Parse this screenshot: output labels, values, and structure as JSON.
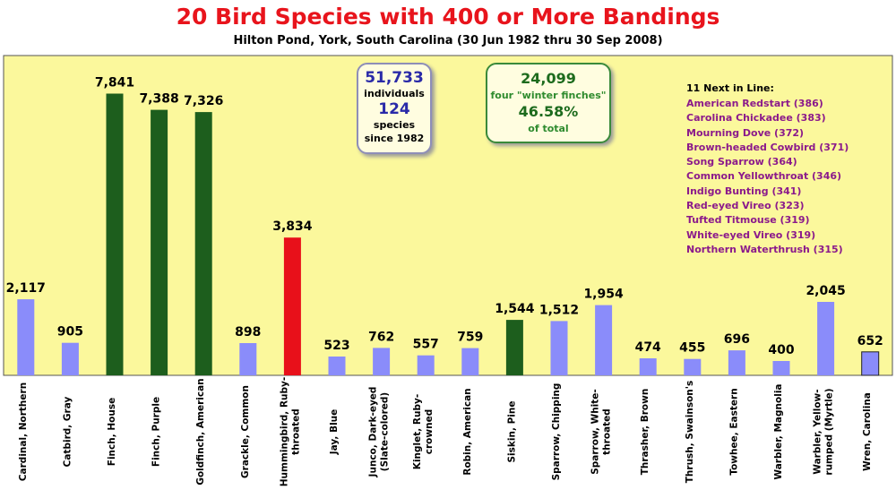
{
  "chart_data": {
    "type": "bar",
    "title": "20 Bird Species with 400 or More Bandings",
    "subtitle": "Hilton Pond, York, South Carolina (30 Jun 1982 thru 30 Sep 2008)",
    "categories": [
      "Cardinal, Northern",
      "Catbird, Gray",
      "Finch, House",
      "Finch, Purple",
      "Goldfinch, American",
      "Grackle, Common",
      "Hummingbird, Ruby-throated",
      "Jay, Blue",
      "Junco, Dark-eyed (Slate-colored)",
      "Kinglet, Ruby-crowned",
      "Robin, American",
      "Siskin, Pine",
      "Sparrow, Chipping",
      "Sparrow, White-throated",
      "Thrasher, Brown",
      "Thrush, Swainson's",
      "Towhee, Eastern",
      "Warbler, Magnolia",
      "Warbler, Yellow-rumped (Myrtle)",
      "Wren, Carolina"
    ],
    "category_lines": [
      [
        "Cardinal, Northern"
      ],
      [
        "Catbird, Gray"
      ],
      [
        "Finch, House"
      ],
      [
        "Finch, Purple"
      ],
      [
        "Goldfinch, American"
      ],
      [
        "Grackle, Common"
      ],
      [
        "Hummingbird, Ruby-",
        "throated"
      ],
      [
        "Jay, Blue"
      ],
      [
        "Junco, Dark-eyed",
        "(Slate-colored)"
      ],
      [
        "Kinglet, Ruby-",
        "crowned"
      ],
      [
        "Robin, American"
      ],
      [
        "Siskin, Pine"
      ],
      [
        "Sparrow, Chipping"
      ],
      [
        "Sparrow, White-",
        "throated"
      ],
      [
        "Thrasher, Brown"
      ],
      [
        "Thrush, Swainson's"
      ],
      [
        "Towhee, Eastern"
      ],
      [
        "Warbler, Magnolia"
      ],
      [
        "Warbler, Yellow-",
        "rumped (Myrtle)"
      ],
      [
        "Wren, Carolina"
      ]
    ],
    "values": [
      2117,
      905,
      7841,
      7388,
      7326,
      898,
      3834,
      523,
      762,
      557,
      759,
      1544,
      1512,
      1954,
      474,
      455,
      696,
      400,
      2045,
      652
    ],
    "value_labels": [
      "2,117",
      "905",
      "7,841",
      "7,388",
      "7,326",
      "898",
      "3,834",
      "523",
      "762",
      "557",
      "759",
      "1,544",
      "1,512",
      "1,954",
      "474",
      "455",
      "696",
      "400",
      "2,045",
      "652"
    ],
    "bar_colors": [
      "#8a8cfa",
      "#8a8cfa",
      "#1d5e1d",
      "#1d5e1d",
      "#1d5e1d",
      "#8a8cfa",
      "#e8101a",
      "#8a8cfa",
      "#8a8cfa",
      "#8a8cfa",
      "#8a8cfa",
      "#1d5e1d",
      "#8a8cfa",
      "#8a8cfa",
      "#8a8cfa",
      "#8a8cfa",
      "#8a8cfa",
      "#8a8cfa",
      "#8a8cfa",
      "#8a8cfa"
    ],
    "ylim": [
      0,
      8900
    ],
    "grid": false,
    "plot_background": "#fbf89c"
  },
  "stats_box": {
    "individuals_value": "51,733",
    "individuals_label": "individuals",
    "species_value": "124",
    "species_label": "species",
    "since_label": "since 1982"
  },
  "winter_box": {
    "count": "24,099",
    "label": "four \"winter finches\"",
    "percent": "46.58%",
    "percent_label": "of total"
  },
  "next_in_line": {
    "heading": "11 Next in Line:",
    "items": [
      "American Redstart (386)",
      "Carolina Chickadee (383)",
      "Mourning Dove (372)",
      "Brown-headed Cowbird (371)",
      "Song Sparrow (364)",
      "Common Yellowthroat (346)",
      "Indigo Bunting (341)",
      "Red-eyed Vireo (323)",
      "Tufted Titmouse (319)",
      "White-eyed Vireo (319)",
      "Northern Waterthrush (315)"
    ]
  }
}
